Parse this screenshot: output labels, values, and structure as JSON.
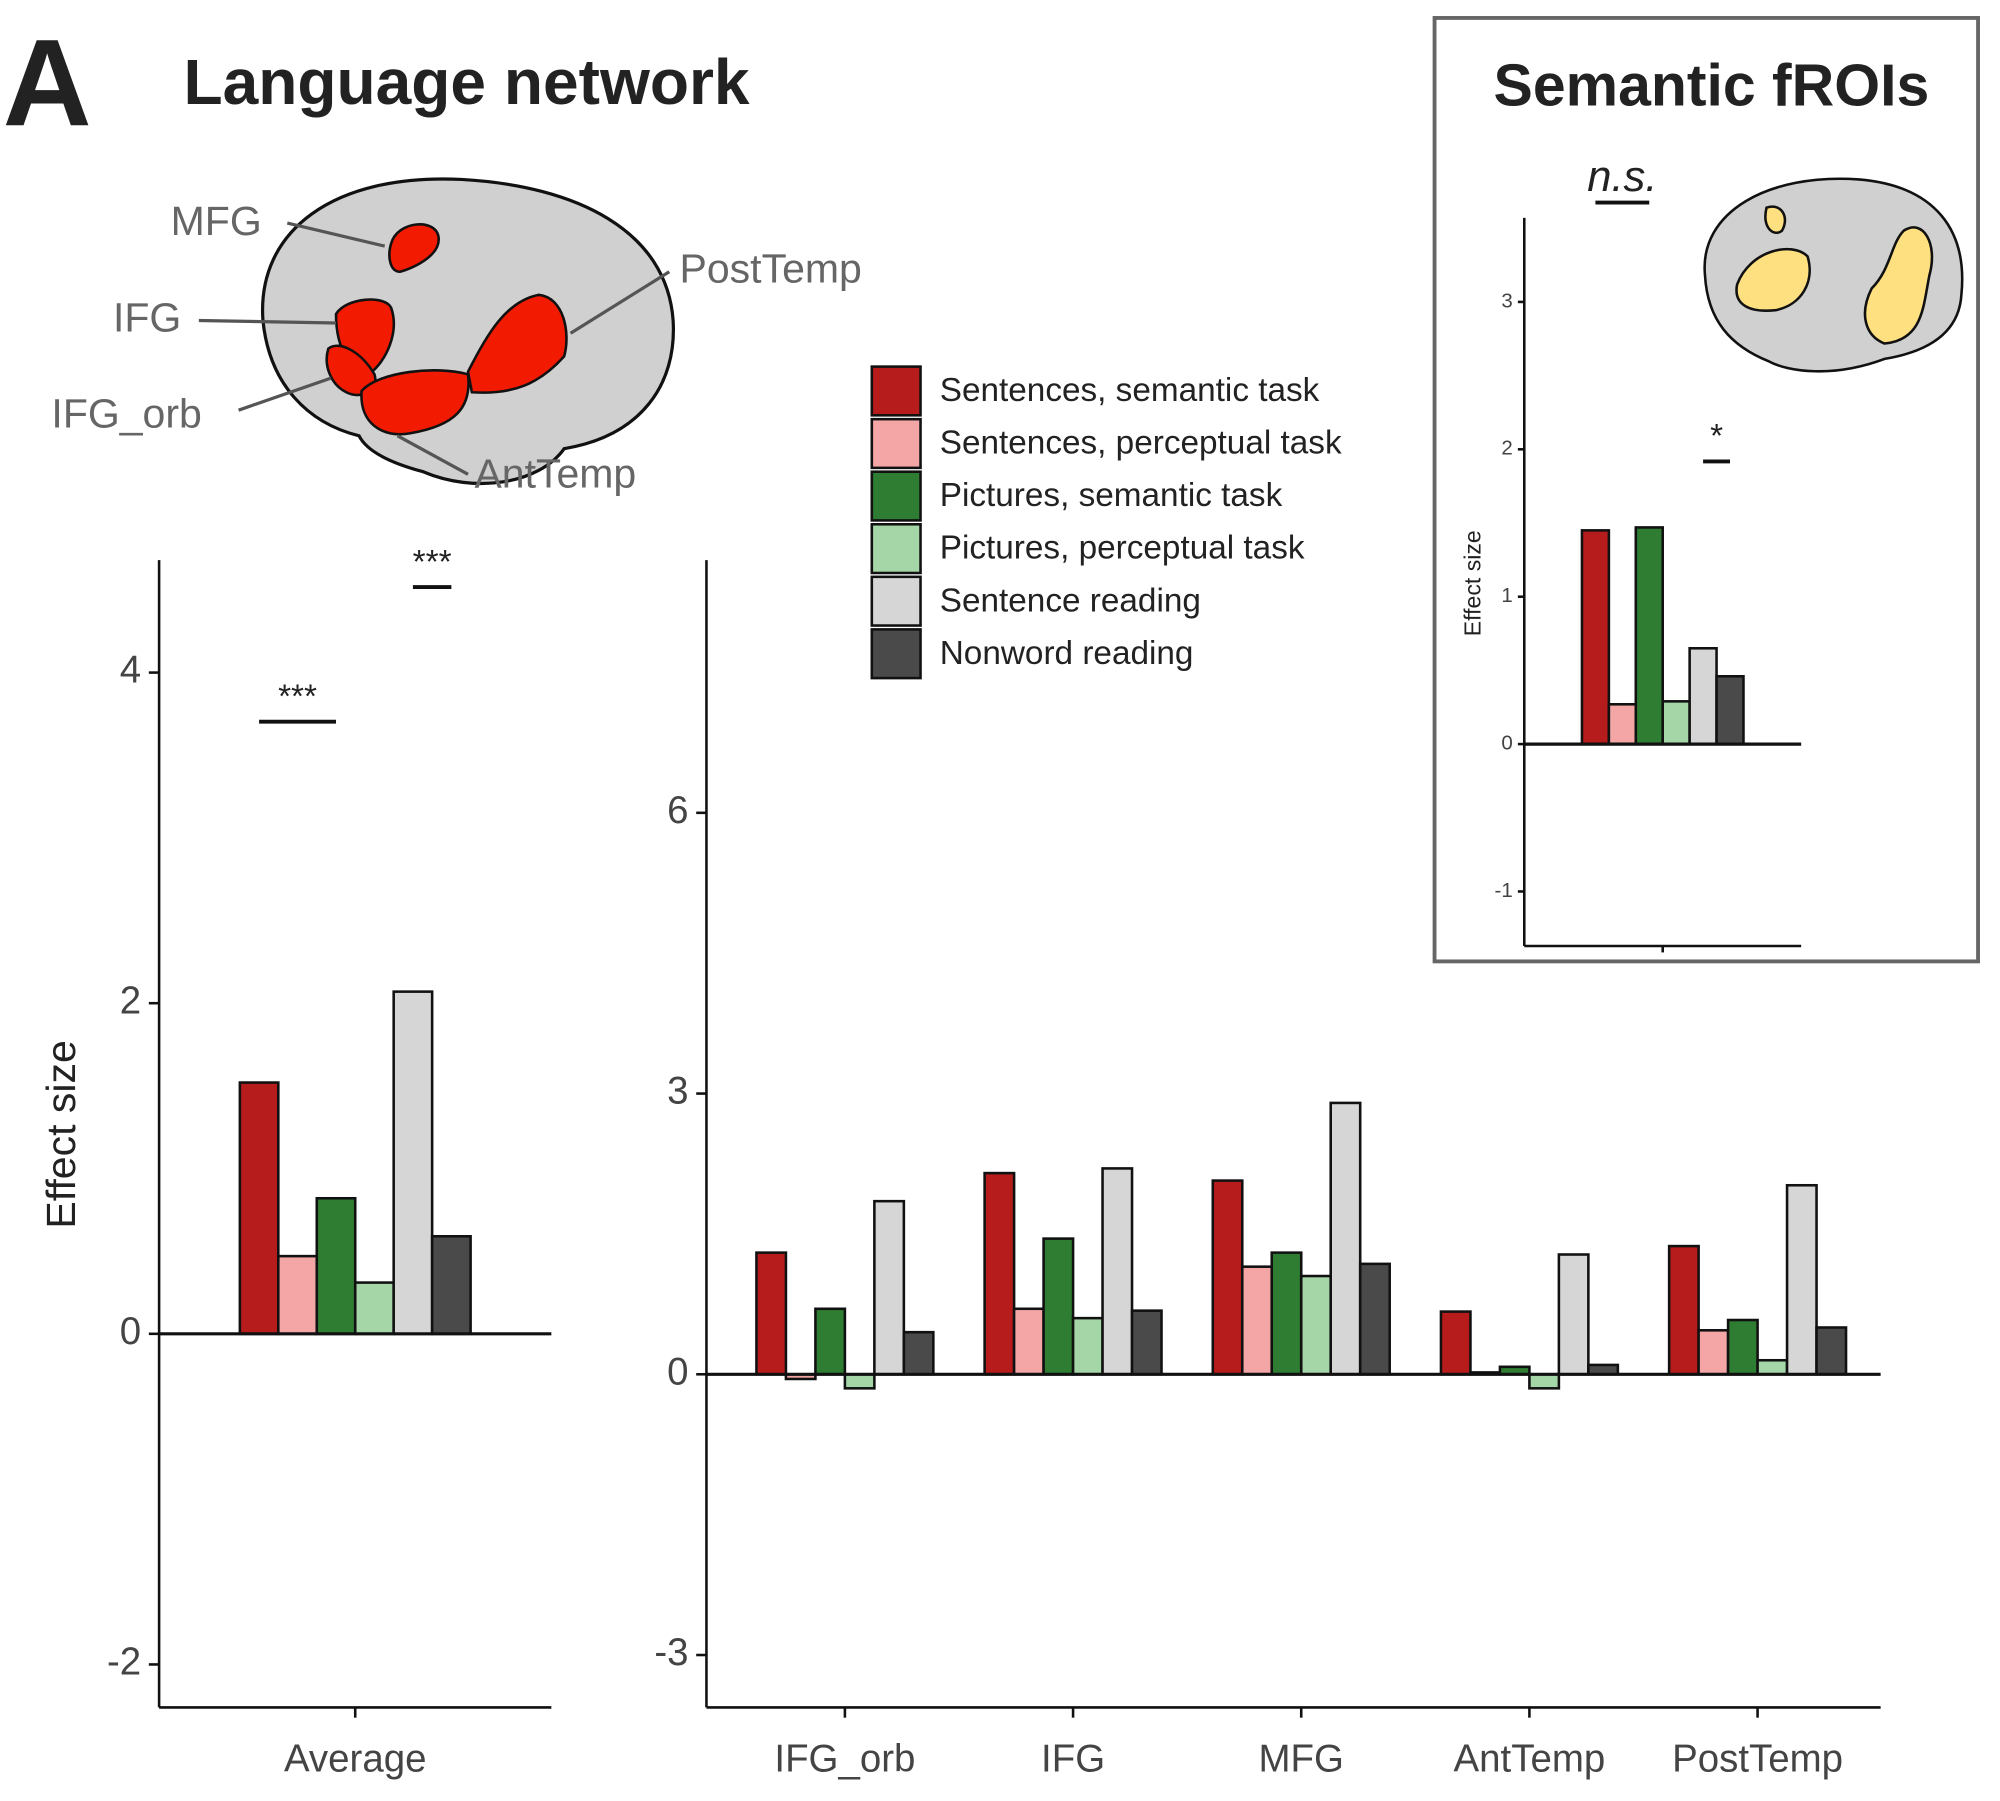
{
  "panel_label": "A",
  "title": "Language network",
  "inset_title": "Semantic fROIs",
  "brain_labels": [
    "MFG",
    "IFG",
    "IFG_orb",
    "PostTemp",
    "AntTemp"
  ],
  "chart_data": [
    {
      "type": "bar",
      "ylabel": "Effect size",
      "categories": [
        "Average"
      ],
      "ylim": [
        -2.26,
        4.68
      ],
      "yticks": [
        -2,
        0,
        2,
        4
      ],
      "series": [
        {
          "color": "#b71c1c",
          "values": [
            1.52
          ]
        },
        {
          "color": "#f4a6a6",
          "values": [
            0.47
          ]
        },
        {
          "color": "#2e7d32",
          "values": [
            0.82
          ]
        },
        {
          "color": "#a5d6a7",
          "values": [
            0.31
          ]
        },
        {
          "color": "#d6d6d6",
          "values": [
            2.07
          ]
        },
        {
          "color": "#4a4a4a",
          "values": [
            0.59
          ]
        }
      ],
      "annotations": [
        {
          "text": "***",
          "from": 0,
          "to": 2
        },
        {
          "text": "***",
          "from": 4,
          "to": 5
        }
      ]
    },
    {
      "type": "bar",
      "categories": [
        "IFG_orb",
        "IFG",
        "MFG",
        "AntTemp",
        "PostTemp"
      ],
      "ylim": [
        -3.56,
        8.7
      ],
      "yticks": [
        -3,
        0,
        3,
        6
      ],
      "series": [
        {
          "name": "Sentences, semantic task",
          "color": "#b71c1c",
          "values": [
            1.3,
            2.15,
            2.07,
            0.67,
            1.37
          ]
        },
        {
          "name": "Sentences, perceptual task",
          "color": "#f4a6a6",
          "values": [
            -0.05,
            0.7,
            1.15,
            0.02,
            0.47
          ]
        },
        {
          "name": "Pictures, semantic task",
          "color": "#2e7d32",
          "values": [
            0.7,
            1.45,
            1.3,
            0.08,
            0.58
          ]
        },
        {
          "name": "Pictures, perceptual task",
          "color": "#a5d6a7",
          "values": [
            -0.15,
            0.6,
            1.05,
            -0.15,
            0.15
          ]
        },
        {
          "name": "Sentence reading",
          "color": "#d6d6d6",
          "values": [
            1.85,
            2.2,
            2.9,
            1.28,
            2.02
          ]
        },
        {
          "name": "Nonword reading",
          "color": "#4a4a4a",
          "values": [
            0.45,
            0.68,
            1.18,
            0.1,
            0.5
          ]
        }
      ]
    },
    {
      "type": "bar",
      "ylabel": "Effect size",
      "categories": [
        null
      ],
      "ylim": [
        -1.37,
        3.57
      ],
      "yticks": [
        -1,
        0,
        1,
        2,
        3
      ],
      "series": [
        {
          "color": "#b71c1c",
          "values": [
            1.45
          ]
        },
        {
          "color": "#f4a6a6",
          "values": [
            0.27
          ]
        },
        {
          "color": "#2e7d32",
          "values": [
            1.47
          ]
        },
        {
          "color": "#a5d6a7",
          "values": [
            0.29
          ]
        },
        {
          "color": "#d6d6d6",
          "values": [
            0.65
          ]
        },
        {
          "color": "#4a4a4a",
          "values": [
            0.46
          ]
        }
      ],
      "annotations": [
        {
          "text": "n.s.",
          "from": 0,
          "to": 2
        },
        {
          "text": "*",
          "from": 4,
          "to": 5
        }
      ]
    }
  ]
}
